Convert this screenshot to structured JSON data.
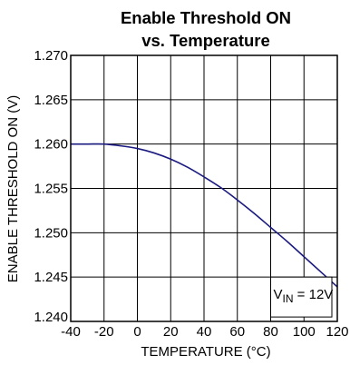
{
  "chart_data": {
    "type": "line",
    "title_lines": [
      "Enable Threshold ON",
      "vs. Temperature"
    ],
    "xlabel": "TEMPERATURE (°C)",
    "ylabel": "ENABLE THRESHOLD ON (V)",
    "xlim": [
      -40,
      120
    ],
    "ylim": [
      1.24,
      1.27
    ],
    "x_ticks": [
      "-40",
      "-20",
      "0",
      "20",
      "40",
      "60",
      "80",
      "100",
      "120"
    ],
    "y_ticks": [
      "1.240",
      "1.245",
      "1.250",
      "1.255",
      "1.260",
      "1.265",
      "1.270"
    ],
    "x_tick_values": [
      -40,
      -20,
      0,
      20,
      40,
      60,
      80,
      100,
      120
    ],
    "y_tick_values": [
      1.24,
      1.245,
      1.25,
      1.255,
      1.26,
      1.265,
      1.27
    ],
    "grid": true,
    "annotation": {
      "main": "V",
      "sub": "IN",
      "rest": " = 12V"
    },
    "series": [
      {
        "color": "#1a1a80",
        "x": [
          -40,
          -30,
          -20,
          -10,
          0,
          10,
          20,
          30,
          40,
          50,
          60,
          70,
          80,
          90,
          100,
          110,
          120
        ],
        "y": [
          1.26,
          1.26,
          1.26,
          1.2598,
          1.2595,
          1.259,
          1.2583,
          1.2574,
          1.2563,
          1.2551,
          1.2537,
          1.2522,
          1.2506,
          1.249,
          1.2473,
          1.2456,
          1.2439
        ]
      }
    ]
  }
}
